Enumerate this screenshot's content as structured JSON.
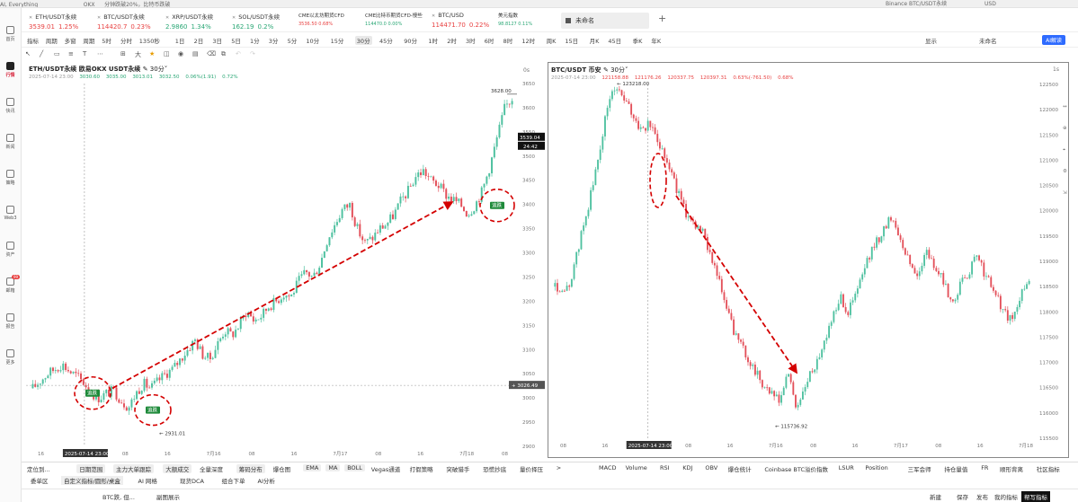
{
  "topstrip": [
    "AI, Everything",
    "OKX",
    "分钟跌破20%，比特币跌破",
    "Binance BTC/USDT永续",
    "USD"
  ],
  "sidebar": [
    {
      "label": "首页"
    },
    {
      "label": "行情",
      "active": true
    },
    {
      "label": "快讯"
    },
    {
      "label": "新闻"
    },
    {
      "label": "策略"
    },
    {
      "label": "Web3"
    },
    {
      "label": "资产"
    },
    {
      "label": "邮箱",
      "badge": "99"
    },
    {
      "label": "报告"
    },
    {
      "label": "更多"
    }
  ],
  "tickers": [
    {
      "name": "ETH/USDT永续",
      "price": "3539.01",
      "change": "1.25%",
      "dir": "red"
    },
    {
      "name": "BTC/USDT永续",
      "price": "114420.7",
      "change": "0.23%",
      "dir": "red"
    },
    {
      "name": "XRP/USDT永续",
      "price": "2.9860",
      "change": "1.34%",
      "dir": "green"
    },
    {
      "name": "SOL/USDT永续",
      "price": "162.19",
      "change": "0.2%",
      "dir": "green"
    }
  ],
  "small_tickers": [
    {
      "name": "CME以太坊期货CFD",
      "value": "3536.50 0.68%",
      "dir": "red"
    },
    {
      "name": "CME比特币期货CFD-慢些",
      "value": "114470.0 0.00%",
      "dir": "green"
    },
    {
      "name": "BTC/USD",
      "price": "114471.70",
      "change": "0.22%",
      "dir": "red"
    },
    {
      "name": "美元指数",
      "value": "98.8127 0.11%",
      "dir": "green"
    }
  ],
  "tab": {
    "unnamed": "未命名",
    "add": "+"
  },
  "intervalbar": {
    "items": [
      "指标",
      "周期",
      "多窗",
      "周期",
      "5时",
      "分时",
      "1350秒",
      "1日",
      "2日",
      "3日",
      "5日",
      "1分",
      "3分",
      "5分",
      "10分",
      "15分",
      "30分",
      "45分",
      "90分",
      "1时",
      "2时",
      "3时",
      "6时",
      "8时",
      "12时",
      "周K",
      "15日",
      "月K",
      "45日",
      "季K",
      "年K"
    ],
    "active": "30分",
    "right": [
      "显示",
      "未命名"
    ],
    "ai": "AI解读"
  },
  "left_chart": {
    "title": "ETH/USDT永续 欧易OKX USDT永续",
    "interval": "30分",
    "ohlc": {
      "time": "2025-07-14 23:00",
      "open": "3030.60",
      "high": "3035.00",
      "low": "3013.01",
      "close": "3032.50",
      "change": "0.06%(1.91)",
      "amp": "0.72%"
    },
    "corner": "0s",
    "chart_data": {
      "type": "candlestick",
      "ylim": [
        2900,
        3650
      ],
      "yticks": [
        2900,
        2950,
        3000,
        3050,
        3100,
        3150,
        3200,
        3250,
        3300,
        3350,
        3400,
        3450,
        3500,
        3550,
        3600,
        3650
      ],
      "xticks": [
        "16",
        "2025-07-14 23:00",
        "08",
        "16",
        "7月16",
        "08",
        "16",
        "7月17",
        "08",
        "16",
        "7月18",
        "08"
      ],
      "high_label": "3628.00",
      "low_label": "2931.01",
      "last_price": "3539.04",
      "countdown": "24:42",
      "cross_price": "3026.49",
      "badge_label": "追跌",
      "path": [
        3020,
        3035,
        3050,
        3060,
        3070,
        3055,
        3045,
        3030,
        3010,
        3000,
        3010,
        3015,
        2995,
        2980,
        3010,
        3030,
        3020,
        3035,
        3050,
        3060,
        3080,
        3100,
        3120,
        3090,
        3080,
        3110,
        3140,
        3130,
        3150,
        3180,
        3160,
        3170,
        3190,
        3200,
        3215,
        3210,
        3240,
        3260,
        3250,
        3280,
        3330,
        3360,
        3390,
        3400,
        3350,
        3320,
        3330,
        3350,
        3360,
        3380,
        3410,
        3430,
        3460,
        3470,
        3450,
        3440,
        3420,
        3410,
        3400,
        3380,
        3400,
        3430,
        3480,
        3540,
        3600,
        3620
      ]
    }
  },
  "right_chart": {
    "title": "BTC/USDT 币安",
    "interval": "30分",
    "ohlc": {
      "time": "2025-07-14 23:00",
      "open": "121158.88",
      "high": "121176.26",
      "low": "120337.75",
      "close": "120397.31",
      "change": "0.63%(-761.50)",
      "amp": "0.68%"
    },
    "corner": "1s",
    "chart_data": {
      "type": "candlestick",
      "ylim": [
        115500,
        122500
      ],
      "yticks": [
        115500,
        116000,
        116500,
        117000,
        117500,
        118000,
        118500,
        119000,
        119500,
        120000,
        120500,
        121000,
        121500,
        122000,
        122500
      ],
      "xticks": [
        "08",
        "16",
        "2025-07-14 23:00",
        "08",
        "16",
        "7月16",
        "08",
        "16",
        "7月17",
        "08",
        "16",
        "7月18"
      ],
      "high_label": "123218.00",
      "low_label": "115736.92",
      "path": [
        118500,
        118300,
        118700,
        119500,
        120200,
        121000,
        122000,
        122500,
        122200,
        121900,
        121600,
        121700,
        121400,
        121000,
        120500,
        120000,
        119800,
        119600,
        119200,
        118600,
        118000,
        117500,
        117200,
        116900,
        116600,
        116400,
        116200,
        116800,
        116100,
        116500,
        116900,
        117300,
        117800,
        118300,
        118000,
        118400,
        118900,
        119300,
        119600,
        119900,
        119500,
        119000,
        118700,
        119200,
        118900,
        118600,
        118200,
        118500,
        118800,
        119100,
        118700,
        118400,
        118000,
        117800,
        118300,
        118700
      ]
    }
  },
  "indicators": [
    "定位到...",
    "日期范围",
    "主力大单跟踪",
    "大额成交",
    "全量深度",
    "筹码分布",
    "爆仓图",
    "EMA",
    "MA",
    "BOLL",
    "Vegas通道",
    "打假策略",
    "突破猎手",
    "恐慌抄底",
    "量价择压",
    ">",
    "MACD",
    "Volume",
    "RSI",
    "KDJ",
    "OBV",
    "爆仓统计",
    "Coinbase BTC溢价指数",
    "LSUR",
    "Position",
    "三军会师",
    "持仓量值",
    "FR",
    "顺形背离",
    "社区指标"
  ],
  "cmd": [
    "自定义指标/圆形/桌盒",
    "AI 网格",
    "现货DCA",
    "组合下单",
    "AI分析"
  ],
  "cmd_left": "委单区",
  "bottom": {
    "left": [
      "BTC跌, 但...",
      "副图展示"
    ],
    "right": [
      "新建",
      "保存",
      "发布",
      "我的指标",
      "帮写指标"
    ]
  }
}
